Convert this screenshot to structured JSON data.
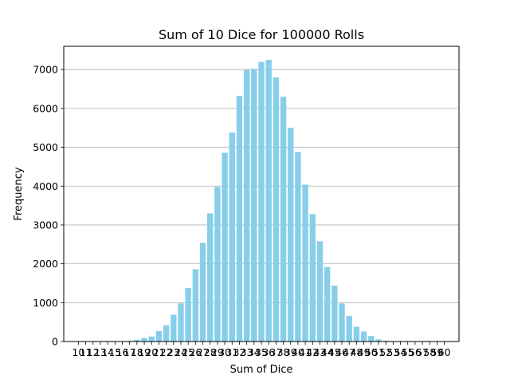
{
  "chart_data": {
    "type": "bar",
    "title": "Sum of 10 Dice for 100000 Rolls",
    "xlabel": "Sum of Dice",
    "ylabel": "Frequency",
    "x": [
      10,
      11,
      12,
      13,
      14,
      15,
      16,
      17,
      18,
      19,
      20,
      21,
      22,
      23,
      24,
      25,
      26,
      27,
      28,
      29,
      30,
      31,
      32,
      33,
      34,
      35,
      36,
      37,
      38,
      39,
      40,
      41,
      42,
      43,
      44,
      45,
      46,
      47,
      48,
      49,
      50,
      51,
      52,
      53,
      54,
      55,
      56,
      57,
      58,
      59,
      60
    ],
    "values": [
      0,
      0,
      0,
      0,
      1,
      3,
      8,
      17,
      45,
      90,
      130,
      270,
      420,
      690,
      980,
      1380,
      1860,
      2540,
      3300,
      3980,
      4860,
      5380,
      6320,
      6990,
      7020,
      7200,
      7250,
      6800,
      6300,
      5500,
      4880,
      4040,
      3280,
      2580,
      1920,
      1440,
      980,
      660,
      380,
      260,
      140,
      55,
      20,
      6,
      2,
      1,
      0,
      0,
      0,
      0,
      0
    ],
    "ylim": [
      0,
      7600
    ],
    "yticks": [
      0,
      1000,
      2000,
      3000,
      4000,
      5000,
      6000,
      7000
    ],
    "xlim": [
      8,
      62
    ],
    "grid": "y",
    "colors": {
      "bar": "#87CEEB",
      "grid": "#b0b0b0",
      "axis": "#000000"
    }
  }
}
